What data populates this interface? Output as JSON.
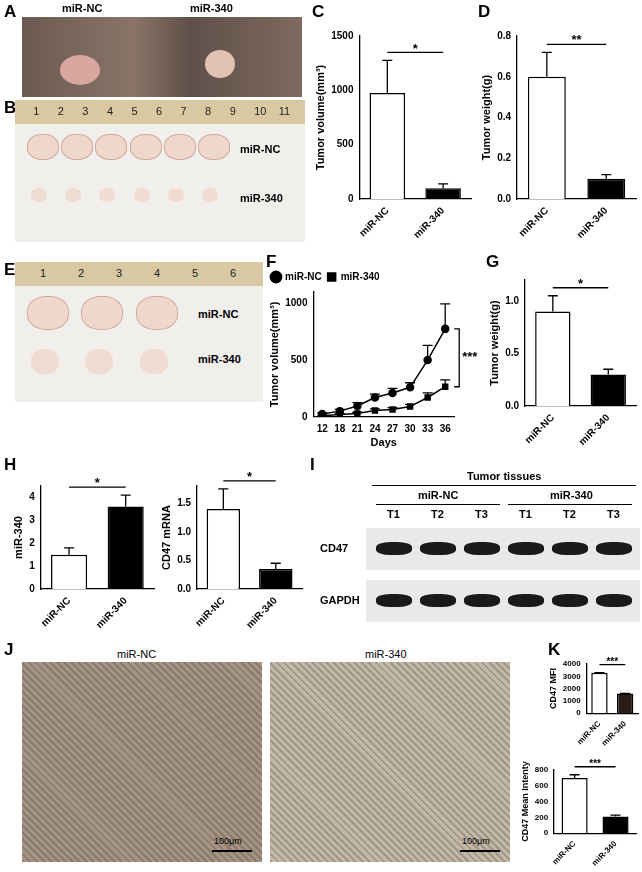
{
  "chart_data": [
    {
      "panel": "C",
      "type": "bar",
      "y_label": "Tumor volume(mm³)",
      "categories": [
        "miR-NC",
        "miR-340"
      ],
      "values": [
        975,
        100
      ],
      "errors": [
        300,
        40
      ],
      "colors": [
        "#ffffff",
        "#000000"
      ],
      "ylim": [
        0,
        1500
      ],
      "yticks": [
        0,
        500,
        1000,
        1500
      ],
      "grid": false,
      "significance": "*"
    },
    {
      "panel": "D",
      "type": "bar",
      "y_label": "Tumor weight(g)",
      "categories": [
        "miR-NC",
        "miR-340"
      ],
      "values": [
        0.6,
        0.1
      ],
      "errors": [
        0.12,
        0.02
      ],
      "colors": [
        "#ffffff",
        "#000000"
      ],
      "ylim": [
        0,
        0.8
      ],
      "yticks": [
        {
          "value": 0,
          "label": "0.0"
        },
        0.2,
        0.4,
        0.6,
        0.8
      ],
      "grid": false,
      "significance": "**"
    },
    {
      "panel": "F",
      "type": "line",
      "y_label": "Tumor volume(mm³)",
      "x_label": "Days",
      "categories": [
        "12",
        "18",
        "21",
        "24",
        "27",
        "30",
        "33",
        "36"
      ],
      "series": [
        {
          "name": "miR-NC",
          "color": "#000000",
          "marker": "circle",
          "values": [
            25,
            50,
            95,
            170,
            210,
            260,
            500,
            775
          ],
          "errors": [
            10,
            15,
            30,
            30,
            40,
            40,
            130,
            220
          ]
        },
        {
          "name": "miR-340",
          "color": "#000000",
          "marker": "square",
          "values": [
            10,
            20,
            30,
            55,
            65,
            90,
            170,
            265
          ],
          "errors": [
            5,
            8,
            10,
            15,
            15,
            20,
            40,
            60
          ]
        }
      ],
      "ylim": [
        0,
        1100
      ],
      "yticks": [
        0,
        500,
        1000
      ],
      "grid": false,
      "legend": "upper left",
      "significance": "***"
    },
    {
      "panel": "G",
      "type": "bar",
      "y_label": "Tumor weight(g)",
      "categories": [
        "miR-NC",
        "miR-340"
      ],
      "values": [
        0.9,
        0.3
      ],
      "errors": [
        0.15,
        0.05
      ],
      "colors": [
        "#ffffff",
        "#000000"
      ],
      "ylim": [
        0,
        1.2
      ],
      "yticks": [
        {
          "value": 0,
          "label": "0.0"
        },
        0.5,
        {
          "value": 1,
          "label": "1.0"
        }
      ],
      "grid": false,
      "significance": "*"
    },
    {
      "panel": "H",
      "type": "bar",
      "y_label": "miR-340",
      "categories": [
        "miR-NC",
        "miR-340"
      ],
      "values": [
        1.5,
        3.6
      ],
      "errors": [
        0.3,
        0.5
      ],
      "colors": [
        "#ffffff",
        "#000000"
      ],
      "ylim": [
        0,
        4.5
      ],
      "yticks": [
        0,
        1,
        2,
        3,
        4
      ],
      "grid": false,
      "significance": "*"
    },
    {
      "type": "bar",
      "y_label": "CD47 mRNA",
      "categories": [
        "miR-NC",
        "miR-340"
      ],
      "values": [
        1.4,
        0.35
      ],
      "errors": [
        0.35,
        0.1
      ],
      "colors": [
        "#ffffff",
        "#000000"
      ],
      "ylim": [
        0,
        1.8
      ],
      "yticks": [
        {
          "value": 0,
          "label": "0.0"
        },
        0.5,
        {
          "value": 1,
          "label": "1.0"
        },
        1.5
      ],
      "grid": false,
      "significance": "*"
    },
    {
      "type": "bar",
      "y_label": "CD47 Mean Intenty",
      "categories": [
        "miR-NC",
        "miR-340"
      ],
      "values": [
        700,
        210
      ],
      "errors": [
        40,
        20
      ],
      "colors": [
        "#ffffff",
        "#000000"
      ],
      "ylim": [
        0,
        800
      ],
      "yticks": [
        0,
        200,
        400,
        600,
        800
      ],
      "grid": false,
      "significance": "***"
    },
    {
      "panel": "K",
      "type": "bar",
      "y_label": "CD47 MFI",
      "categories": [
        "miR-NC",
        "miR-340"
      ],
      "values": [
        3280,
        1600
      ],
      "errors": [
        20,
        20
      ],
      "colors": [
        "#ffffff",
        "#2b1d17"
      ],
      "ylim": [
        0,
        4000
      ],
      "yticks": [
        0,
        1000,
        2000,
        3000,
        4000
      ],
      "grid": false,
      "significance": "***"
    }
  ],
  "images": [
    {
      "panel": "A",
      "labels": [
        "miR-NC",
        "miR-340"
      ]
    },
    {
      "panel": "B",
      "ruler": [
        1,
        2,
        3,
        4,
        5,
        6,
        7,
        8,
        9,
        10,
        11
      ],
      "labels": [
        "miR-NC",
        "miR-340"
      ]
    },
    {
      "panel": "E",
      "ruler": [
        1,
        2,
        3,
        4,
        5,
        6
      ],
      "labels": [
        "miR-NC",
        "miR-340"
      ]
    },
    {
      "panel": "J",
      "labels": [
        "miR-NC",
        "miR-340"
      ],
      "scale_bar": "100μm"
    }
  ],
  "blot": {
    "panel": "I",
    "header": "Tumor tissues",
    "groups": [
      "miR-NC",
      "miR-340"
    ],
    "lanes": [
      "T1",
      "T2",
      "T3",
      "T1",
      "T2",
      "T3"
    ],
    "rows": [
      "CD47",
      "GAPDH"
    ]
  }
}
